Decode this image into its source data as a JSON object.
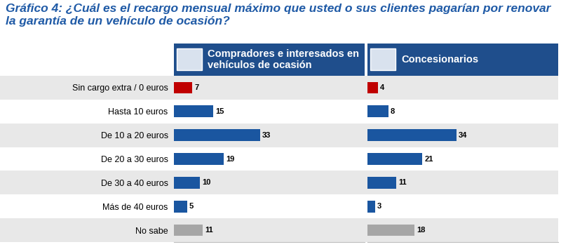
{
  "chart_data": {
    "type": "bar",
    "orientation": "horizontal",
    "title": "Gráfico 4: ¿Cuál es el recargo mensual máximo que usted o sus clientes pagarían por renovar la garantía de un vehículo de ocasión?",
    "categories": [
      "Sin cargo extra / 0 euros",
      "Hasta 10 euros",
      "De 10 a 20 euros",
      "De 20 a 30 euros",
      "De 30 a 40 euros",
      "Más de 40 euros",
      "No sabe"
    ],
    "series": [
      {
        "name": "Compradores e interesados en vehículos de ocasión",
        "values": [
          7,
          15,
          33,
          19,
          10,
          5,
          11
        ],
        "colors": [
          "#c00000",
          "#1a56a0",
          "#1a56a0",
          "#1a56a0",
          "#1a56a0",
          "#1a56a0",
          "#a6a6a6"
        ]
      },
      {
        "name": "Concesionarios",
        "values": [
          4,
          8,
          34,
          21,
          11,
          3,
          18
        ],
        "colors": [
          "#c00000",
          "#1a56a0",
          "#1a56a0",
          "#1a56a0",
          "#1a56a0",
          "#1a56a0",
          "#a6a6a6"
        ]
      }
    ],
    "xlim": [
      0,
      73
    ],
    "xticks": [],
    "data_labels": true,
    "tick_labels": "y",
    "grid": false
  }
}
